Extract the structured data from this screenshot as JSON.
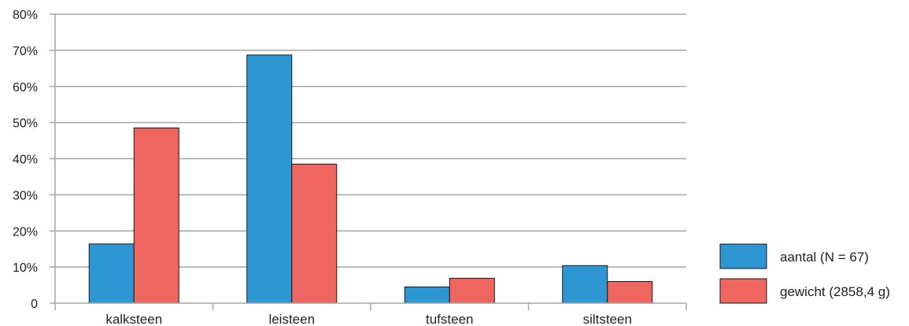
{
  "chart_data": {
    "type": "bar",
    "title": "",
    "xlabel": "",
    "ylabel": "",
    "categories": [
      "kalksteen",
      "leisteen",
      "tufsteen",
      "siltsteen"
    ],
    "series": [
      {
        "name": "aantal (N = 67)",
        "values": [
          16.4,
          68.7,
          4.5,
          10.4
        ],
        "color": "#2e97d3"
      },
      {
        "name": "gewicht (2858,4 g)",
        "values": [
          48.5,
          38.5,
          6.9,
          6.0
        ],
        "color": "#ef6660"
      }
    ],
    "ylim": [
      0,
      80
    ],
    "yticks": [
      "0",
      "10%",
      "20%",
      "30%",
      "40%",
      "50%",
      "60%",
      "70%",
      "80%"
    ],
    "grid": true,
    "legend_position": "right"
  }
}
